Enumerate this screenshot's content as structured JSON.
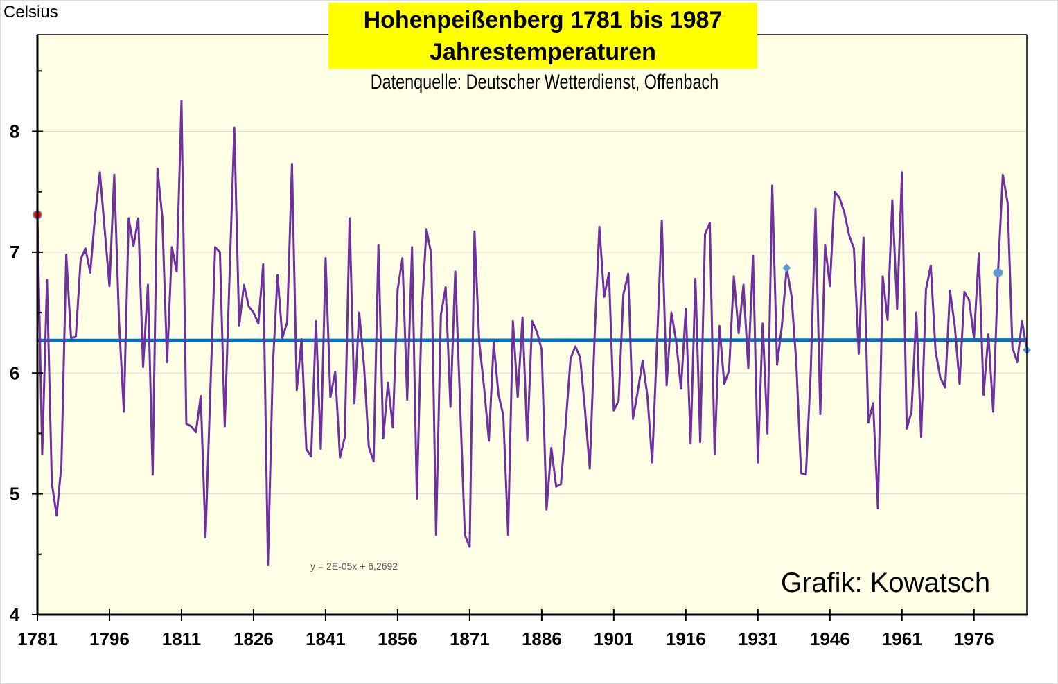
{
  "chart_data": {
    "type": "line",
    "title": "Hohenpeißenberg 1781 bis 1987",
    "subtitle_line": "Jahrestemperaturen",
    "source": "Datenquelle: Deutscher Wetterdienst, Offenbach",
    "credit": "Grafik: Kowatsch",
    "ylabel": "Celsius",
    "xlabel": "",
    "ylim": [
      4,
      8.8
    ],
    "xlim": [
      1781,
      1987
    ],
    "yticks": [
      "4",
      "5",
      "6",
      "7",
      "8"
    ],
    "yminor": [
      4.5,
      5.5,
      6.5,
      7.5,
      8.5
    ],
    "xticks": [
      "1781",
      "1796",
      "1811",
      "1826",
      "1841",
      "1856",
      "1871",
      "1886",
      "1901",
      "1916",
      "1931",
      "1946",
      "1961",
      "1976"
    ],
    "grid": "horizontal",
    "legend": "none",
    "background": "#ffffe6",
    "series": [
      {
        "name": "Jahrestemperatur",
        "color": "#7030a0",
        "x_start": 1781,
        "values": [
          7.31,
          5.33,
          6.77,
          5.09,
          4.82,
          5.24,
          6.98,
          6.29,
          6.3,
          6.94,
          7.03,
          6.83,
          7.3,
          7.66,
          7.19,
          6.72,
          7.64,
          6.42,
          5.68,
          7.28,
          7.05,
          7.28,
          6.05,
          6.73,
          5.16,
          7.69,
          7.29,
          6.09,
          7.04,
          6.84,
          8.25,
          5.58,
          5.56,
          5.51,
          5.81,
          4.64,
          5.85,
          7.04,
          7.0,
          5.56,
          6.8,
          8.03,
          6.39,
          6.73,
          6.55,
          6.5,
          6.41,
          6.9,
          4.41,
          6.04,
          6.81,
          6.29,
          6.42,
          7.73,
          5.86,
          6.28,
          5.37,
          5.31,
          6.43,
          5.37,
          6.95,
          5.8,
          6.01,
          5.3,
          5.47,
          7.28,
          5.75,
          6.5,
          6.06,
          5.39,
          5.27,
          7.06,
          5.46,
          5.92,
          5.55,
          6.69,
          6.95,
          5.78,
          7.04,
          4.96,
          6.49,
          7.19,
          6.98,
          4.66,
          6.48,
          6.71,
          5.72,
          6.84,
          5.75,
          4.66,
          4.56,
          7.17,
          6.25,
          5.88,
          5.44,
          6.25,
          5.82,
          5.65,
          4.66,
          6.43,
          5.8,
          6.46,
          5.44,
          6.43,
          6.34,
          6.19,
          4.87,
          5.38,
          5.06,
          5.08,
          5.58,
          6.12,
          6.22,
          6.13,
          5.7,
          5.21,
          6.29,
          7.21,
          6.63,
          6.83,
          5.69,
          5.77,
          6.65,
          6.82,
          5.62,
          5.85,
          6.1,
          5.81,
          5.26,
          6.24,
          7.26,
          5.9,
          6.5,
          6.26,
          5.87,
          6.53,
          5.42,
          6.78,
          5.43,
          7.15,
          7.24,
          5.33,
          6.39,
          5.91,
          6.02,
          6.8,
          6.33,
          6.73,
          6.04,
          6.97,
          5.26,
          6.41,
          5.5,
          7.55,
          6.07,
          6.39,
          6.87,
          6.64,
          6.09,
          5.17,
          5.16,
          6.0,
          7.36,
          5.66,
          7.06,
          6.72,
          7.5,
          7.45,
          7.33,
          7.14,
          7.03,
          6.16,
          7.12,
          5.59,
          5.75,
          4.88,
          6.8,
          6.44,
          7.43,
          6.53,
          7.66,
          5.54,
          5.68,
          6.5,
          5.47,
          6.69,
          6.89,
          6.18,
          5.96,
          5.88,
          6.68,
          6.39,
          5.91,
          6.67,
          6.6,
          6.29,
          6.99,
          5.82,
          6.32,
          5.68,
          6.83,
          7.64,
          7.41,
          6.21,
          6.09,
          6.43,
          6.19
        ]
      },
      {
        "name": "Trend",
        "type": "linear-trend",
        "color": "#0070c0",
        "equation": "y = 2E-05x + 6,2692",
        "slope": 2e-05,
        "intercept": 6.2692
      }
    ],
    "markers": [
      {
        "year": 1781,
        "value": 7.31,
        "shape": "circle",
        "color": "#ff0000",
        "outline": "#5b9bd5"
      },
      {
        "year": 1937,
        "value": 6.87,
        "shape": "diamond",
        "color": "#5b9bd5"
      },
      {
        "year": 1981,
        "value": 6.83,
        "shape": "circle",
        "color": "#5b9bd5"
      },
      {
        "year": 1987,
        "value": 6.19,
        "shape": "diamond",
        "color": "#5b9bd5"
      }
    ]
  }
}
